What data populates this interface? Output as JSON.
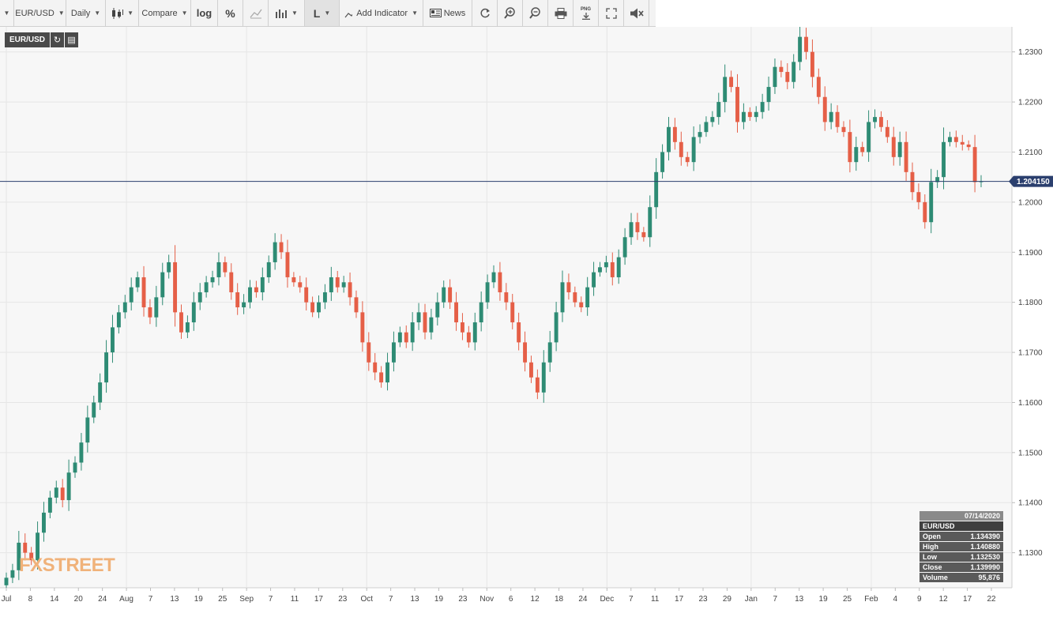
{
  "toolbar": {
    "symbol": "EUR/USD",
    "interval": "Daily",
    "compare": "Compare",
    "log": "log",
    "percent": "%",
    "line_mode": "L",
    "add_indicator": "Add Indicator",
    "news": "News",
    "png": "PNG"
  },
  "chart": {
    "symbol_label": "EUR/USD",
    "last_price_label": "1.204150",
    "y_ticks": [
      "1.2300",
      "1.2200",
      "1.2100",
      "1.2000",
      "1.1900",
      "1.1800",
      "1.1700",
      "1.1600",
      "1.1500",
      "1.1400",
      "1.1300"
    ],
    "x_ticks": [
      "Jul",
      "8",
      "14",
      "20",
      "24",
      "Aug",
      "7",
      "13",
      "19",
      "25",
      "Sep",
      "7",
      "11",
      "17",
      "23",
      "Oct",
      "7",
      "13",
      "19",
      "23",
      "Nov",
      "6",
      "12",
      "18",
      "24",
      "Dec",
      "7",
      "11",
      "17",
      "23",
      "29",
      "Jan",
      "7",
      "13",
      "19",
      "25",
      "Feb",
      "4",
      "9",
      "12",
      "17",
      "22"
    ],
    "logo": "FXSTREET"
  },
  "info_box": {
    "date": "07/14/2020",
    "symbol": "EUR/USD",
    "rows": [
      {
        "label": "Open",
        "value": "1.134390"
      },
      {
        "label": "High",
        "value": "1.140880"
      },
      {
        "label": "Low",
        "value": "1.132530"
      },
      {
        "label": "Close",
        "value": "1.139990"
      },
      {
        "label": "Volume",
        "value": "95,876"
      }
    ]
  },
  "colors": {
    "up": "#2e8b74",
    "down": "#e55f47",
    "last_price_line": "#2b3f6e",
    "background": "#f7f7f7"
  },
  "chart_data": {
    "type": "candlestick",
    "ylim": [
      1.123,
      1.235
    ],
    "last_price": 1.20415,
    "closes": [
      1.125,
      1.1265,
      1.132,
      1.13,
      1.1285,
      1.134,
      1.138,
      1.141,
      1.143,
      1.1405,
      1.146,
      1.148,
      1.152,
      1.157,
      1.16,
      1.164,
      1.17,
      1.175,
      1.178,
      1.18,
      1.183,
      1.185,
      1.179,
      1.177,
      1.181,
      1.186,
      1.188,
      1.178,
      1.174,
      1.176,
      1.18,
      1.182,
      1.184,
      1.185,
      1.188,
      1.186,
      1.182,
      1.179,
      1.18,
      1.183,
      1.182,
      1.185,
      1.188,
      1.192,
      1.19,
      1.185,
      1.184,
      1.183,
      1.18,
      1.178,
      1.18,
      1.182,
      1.185,
      1.183,
      1.184,
      1.181,
      1.178,
      1.172,
      1.168,
      1.166,
      1.164,
      1.168,
      1.172,
      1.174,
      1.172,
      1.176,
      1.178,
      1.174,
      1.177,
      1.18,
      1.183,
      1.18,
      1.176,
      1.174,
      1.172,
      1.176,
      1.18,
      1.184,
      1.186,
      1.182,
      1.18,
      1.176,
      1.172,
      1.168,
      1.165,
      1.162,
      1.168,
      1.172,
      1.178,
      1.184,
      1.182,
      1.18,
      1.179,
      1.183,
      1.186,
      1.187,
      1.188,
      1.185,
      1.189,
      1.193,
      1.196,
      1.194,
      1.193,
      1.199,
      1.206,
      1.21,
      1.215,
      1.212,
      1.209,
      1.208,
      1.213,
      1.214,
      1.216,
      1.217,
      1.22,
      1.225,
      1.223,
      1.216,
      1.218,
      1.217,
      1.218,
      1.22,
      1.223,
      1.227,
      1.226,
      1.224,
      1.228,
      1.233,
      1.23,
      1.225,
      1.221,
      1.216,
      1.218,
      1.215,
      1.214,
      1.208,
      1.211,
      1.21,
      1.216,
      1.217,
      1.215,
      1.213,
      1.209,
      1.212,
      1.206,
      1.202,
      1.2,
      1.196,
      1.204,
      1.205,
      1.212,
      1.213,
      1.212,
      1.2115,
      1.211,
      1.204,
      1.20415
    ]
  }
}
